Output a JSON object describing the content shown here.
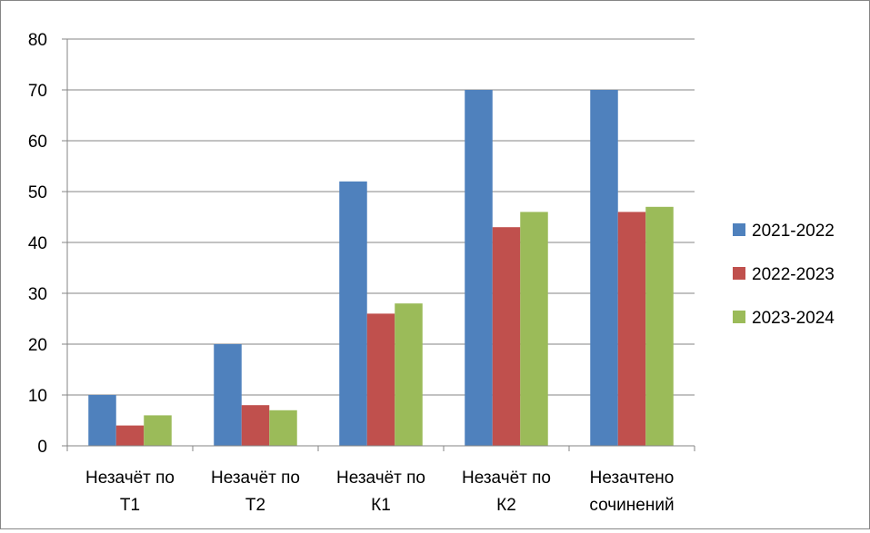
{
  "chart_data": {
    "type": "bar",
    "title": "",
    "xlabel": "",
    "ylabel": "",
    "ylim": [
      0,
      80
    ],
    "ytick_step": 10,
    "grid": true,
    "legend_position": "right",
    "categories": [
      [
        "Незачёт по",
        "Т1"
      ],
      [
        "Незачёт по",
        "Т2"
      ],
      [
        "Незачёт по",
        "К1"
      ],
      [
        "Незачёт по",
        "К2"
      ],
      [
        "Незачтено",
        "сочинений"
      ]
    ],
    "series": [
      {
        "name": "2021-2022",
        "color": "#4F81BD",
        "values": [
          10,
          20,
          52,
          70,
          70
        ]
      },
      {
        "name": "2022-2023",
        "color": "#C0504D",
        "values": [
          4,
          8,
          26,
          43,
          46
        ]
      },
      {
        "name": "2023-2024",
        "color": "#9BBB59",
        "values": [
          6,
          7,
          28,
          46,
          47
        ]
      }
    ]
  }
}
